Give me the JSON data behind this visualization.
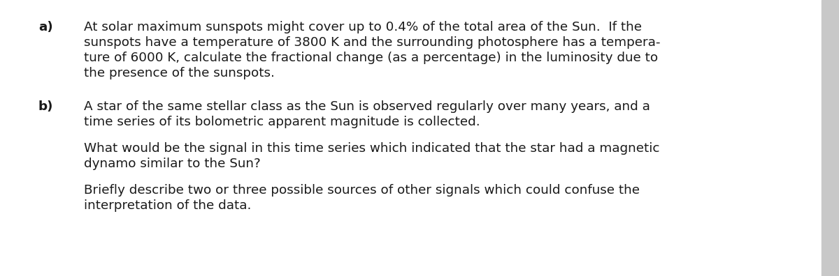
{
  "background_color": "#ffffff",
  "right_strip_color": "#c8c8c8",
  "text_color": "#1a1a1a",
  "font_family": "DejaVu Sans",
  "label_a": "a)",
  "label_b": "b)",
  "text_a_line1": "At solar maximum sunspots might cover up to 0.4% of the total area of the Sun.  If the",
  "text_a_line2": "sunspots have a temperature of 3800 K and the surrounding photosphere has a tempera-",
  "text_a_line3": "ture of 6000 K, calculate the fractional change (as a percentage) in the luminosity due to",
  "text_a_line4": "the presence of the sunspots.",
  "text_b1_line1": "A star of the same stellar class as the Sun is observed regularly over many years, and a",
  "text_b1_line2": "time series of its bolometric apparent magnitude is collected.",
  "text_b2_line1": "What would be the signal in this time series which indicated that the star had a magnetic",
  "text_b2_line2": "dynamo similar to the Sun?",
  "text_b3_line1": "Briefly describe two or three possible sources of other signals which could confuse the",
  "text_b3_line2": "interpretation of the data.",
  "font_size": 13.2,
  "fig_width": 12.0,
  "fig_height": 3.96,
  "dpi": 100
}
